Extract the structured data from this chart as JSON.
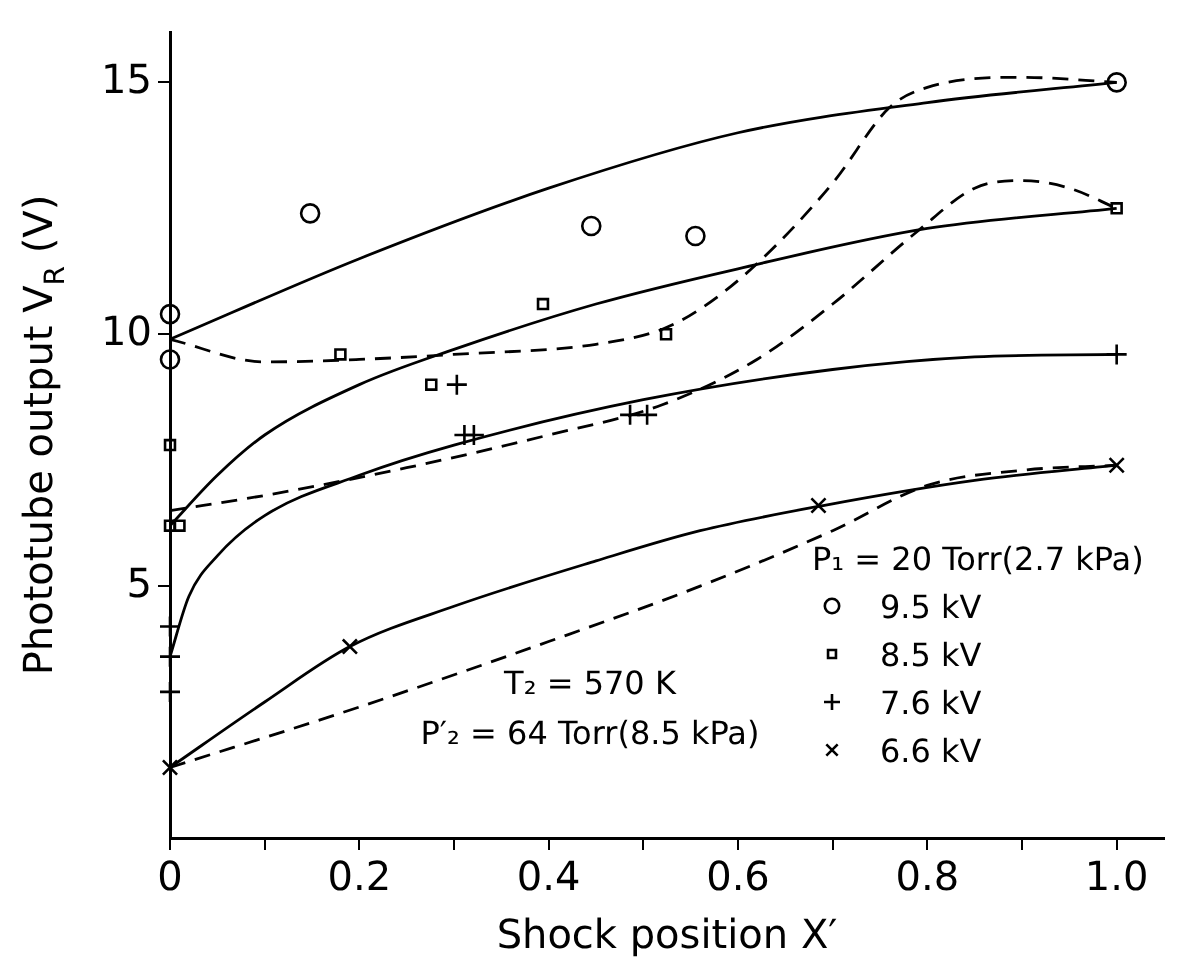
{
  "chart_data": {
    "type": "scatter",
    "xlabel": "Shock position X′",
    "ylabel": "Phototube output V$_{R}$ (V)",
    "legend_title": "P₁ = 20 Torr(2.7 kPa)",
    "legend": "bottom right",
    "annotations": [
      "T₂ = 570 K",
      "P′₂ = 64 Torr(8.5 kPa)"
    ],
    "xlim": [
      0,
      1.05
    ],
    "xticks": [
      {
        "value": 0,
        "label": "0"
      },
      {
        "value": 0.1,
        "label": null
      },
      0.2,
      {
        "value": 0.3,
        "label": null
      },
      0.4,
      {
        "value": 0.5,
        "label": null
      },
      0.6,
      {
        "value": 0.7,
        "label": null
      },
      0.8,
      {
        "value": 0.9,
        "label": null
      },
      {
        "value": 1,
        "label": "1.0"
      }
    ],
    "ylim": [
      0,
      16
    ],
    "yticks": [
      5,
      10,
      15
    ],
    "series": [
      {
        "name": "9.5 kV",
        "type": "scatter",
        "marker": "circle",
        "color": "#000000",
        "x": [
          0,
          0,
          0.148,
          0.445,
          0.555,
          1
        ],
        "values": [
          10.4,
          9.5,
          12.4,
          12.15,
          11.95,
          15
        ]
      },
      {
        "name": "8.5 kV",
        "type": "scatter",
        "marker": "square",
        "color": "#000000",
        "x": [
          0,
          0,
          0.01,
          0.18,
          0.276,
          0.394,
          0.524,
          1
        ],
        "values": [
          7.8,
          6.2,
          6.2,
          9.6,
          9.0,
          10.6,
          10.0,
          12.5
        ]
      },
      {
        "name": "7.6 kV",
        "type": "scatter",
        "marker": "plus",
        "color": "#000000",
        "x": [
          0,
          0,
          0,
          0.303,
          0.311,
          0.321,
          0.486,
          0.504,
          1
        ],
        "values": [
          4.2,
          3.6,
          2.9,
          9.0,
          8.0,
          8.0,
          8.4,
          8.4,
          9.6
        ]
      },
      {
        "name": "6.6 kV",
        "type": "scatter",
        "marker": "cross",
        "color": "#000000",
        "x": [
          0,
          0.19,
          0.685,
          1
        ],
        "values": [
          1.4,
          3.8,
          6.6,
          7.4
        ]
      },
      {
        "type": "line",
        "marker": "none",
        "line_style": "solid",
        "color": "#000000",
        "x": [
          0,
          0.2,
          0.4,
          0.6,
          0.8,
          1
        ],
        "values": [
          9.9,
          11.5,
          12.9,
          14.0,
          14.6,
          15.0
        ]
      },
      {
        "type": "line",
        "marker": "none",
        "line_style": "solid",
        "color": "#000000",
        "x": [
          0,
          0.05,
          0.1,
          0.2,
          0.3,
          0.45,
          0.6,
          0.8,
          1
        ],
        "values": [
          6.2,
          7.2,
          8.0,
          9.0,
          9.7,
          10.6,
          11.3,
          12.1,
          12.5
        ]
      },
      {
        "type": "line",
        "marker": "none",
        "line_style": "solid",
        "color": "#000000",
        "x": [
          0,
          0.02,
          0.05,
          0.1,
          0.2,
          0.3,
          0.5,
          0.7,
          0.85,
          1
        ],
        "values": [
          3.6,
          4.8,
          5.6,
          6.4,
          7.2,
          7.8,
          8.7,
          9.3,
          9.55,
          9.6
        ]
      },
      {
        "type": "line",
        "marker": "none",
        "line_style": "solid",
        "color": "#000000",
        "x": [
          0,
          0.1,
          0.19,
          0.3,
          0.45,
          0.56,
          0.69,
          0.85,
          1
        ],
        "values": [
          1.4,
          2.7,
          3.8,
          4.6,
          5.5,
          6.1,
          6.6,
          7.1,
          7.4
        ]
      },
      {
        "type": "line",
        "marker": "none",
        "line_style": "dashed",
        "color": "#000000",
        "x": [
          0,
          0.1,
          0.2,
          0.3,
          0.45,
          0.52,
          0.56,
          0.62,
          0.7,
          0.76,
          0.8,
          0.9,
          1
        ],
        "values": [
          9.9,
          9.45,
          9.5,
          9.6,
          9.8,
          10.1,
          10.5,
          11.4,
          13.0,
          14.5,
          14.9,
          15.1,
          15.0
        ]
      },
      {
        "type": "line",
        "marker": "none",
        "line_style": "dashed",
        "color": "#000000",
        "x": [
          0,
          0.1,
          0.25,
          0.4,
          0.52,
          0.62,
          0.7,
          0.79,
          0.85,
          0.9,
          0.95,
          1
        ],
        "values": [
          6.5,
          6.8,
          7.35,
          8.0,
          8.6,
          9.5,
          10.6,
          12.05,
          12.9,
          13.05,
          12.9,
          12.5
        ]
      },
      {
        "type": "line",
        "marker": "none",
        "line_style": "dashed",
        "color": "#000000",
        "x": [
          0,
          0.2,
          0.4,
          0.56,
          0.7,
          0.8,
          0.9,
          1
        ],
        "values": [
          1.4,
          2.6,
          3.9,
          5.0,
          6.1,
          7.0,
          7.3,
          7.4
        ]
      }
    ]
  }
}
